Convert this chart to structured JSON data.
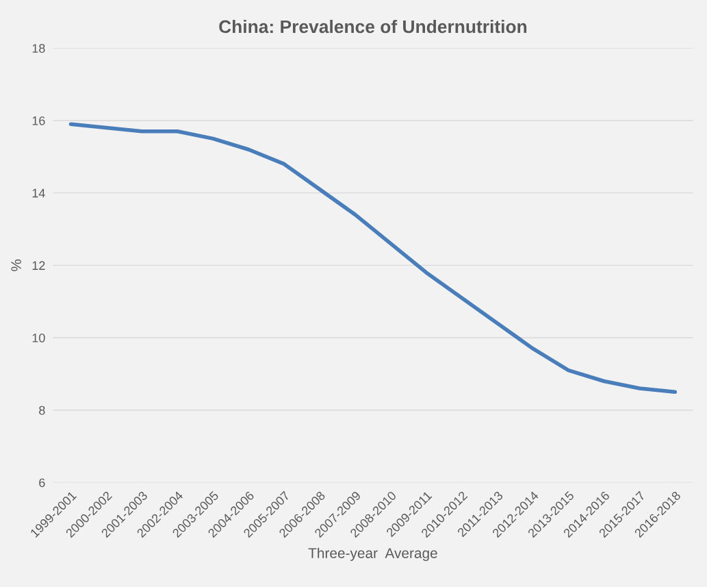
{
  "chart_data": {
    "type": "line",
    "title": "China: Prevalence of Undernutrition",
    "xlabel": "Three-year  Average",
    "ylabel": "%",
    "categories": [
      "1999-2001",
      "2000-2002",
      "2001-2003",
      "2002-2004",
      "2003-2005",
      "2004-2006",
      "2005-2007",
      "2006-2008",
      "2007-2009",
      "2008-2010",
      "2009-2011",
      "2010-2012",
      "2011-2013",
      "2012-2014",
      "2013-2015",
      "2014-2016",
      "2015-2017",
      "2016-2018"
    ],
    "series": [
      {
        "color": "#4a7ebb",
        "values": [
          15.9,
          15.8,
          15.7,
          15.7,
          15.5,
          15.2,
          14.8,
          14.1,
          13.4,
          12.6,
          11.8,
          11.1,
          10.4,
          9.7,
          9.1,
          8.8,
          8.6,
          8.5
        ]
      }
    ],
    "ylim": [
      6,
      18
    ],
    "yticks": [
      6,
      8,
      10,
      12,
      14,
      16,
      18
    ],
    "grid": "y",
    "marker": "none",
    "line_style": "solid"
  }
}
